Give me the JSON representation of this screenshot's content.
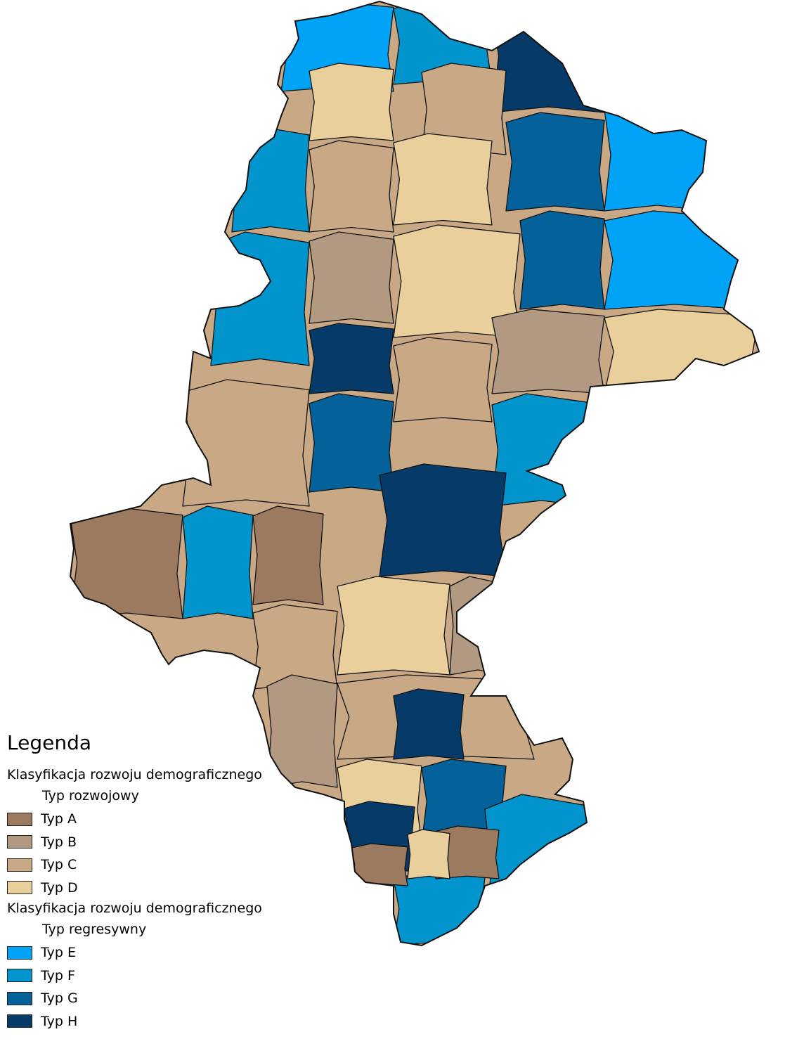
{
  "legend": {
    "title": "Legenda",
    "groups": [
      {
        "heading": "Klasyfikacja rozwoju demograficznego",
        "subheading": "Typ rozwojowy",
        "items": [
          {
            "label": "Typ A",
            "color": "#9b7a60"
          },
          {
            "label": "Typ B",
            "color": "#b29a82"
          },
          {
            "label": "Typ C",
            "color": "#c9a985"
          },
          {
            "label": "Typ D",
            "color": "#e8cf9c"
          }
        ]
      },
      {
        "heading": "Klasyfikacja rozwoju demograficznego",
        "subheading": "Typ regresywny",
        "items": [
          {
            "label": "Typ E",
            "color": "#00a3f5"
          },
          {
            "label": "Typ F",
            "color": "#0294cc"
          },
          {
            "label": "Typ G",
            "color": "#04619a"
          },
          {
            "label": "Typ H",
            "color": "#053a69"
          }
        ]
      }
    ]
  },
  "map": {
    "border_color": "#111111",
    "regions": [
      {
        "type": "Typ E"
      },
      {
        "type": "Typ F"
      },
      {
        "type": "Typ H"
      },
      {
        "type": "Typ D"
      },
      {
        "type": "Typ C"
      },
      {
        "type": "Typ E"
      },
      {
        "type": "Typ G"
      },
      {
        "type": "Typ D"
      },
      {
        "type": "Typ C"
      },
      {
        "type": "Typ F"
      },
      {
        "type": "Typ E"
      },
      {
        "type": "Typ B"
      },
      {
        "type": "Typ D"
      },
      {
        "type": "Typ G"
      },
      {
        "type": "Typ F"
      },
      {
        "type": "Typ A"
      },
      {
        "type": "Typ H"
      },
      {
        "type": "Typ C"
      },
      {
        "type": "Typ B"
      },
      {
        "type": "Typ D"
      },
      {
        "type": "Typ G"
      },
      {
        "type": "Typ F"
      },
      {
        "type": "Typ C"
      },
      {
        "type": "Typ H"
      },
      {
        "type": "Typ A"
      },
      {
        "type": "Typ F"
      },
      {
        "type": "Typ C"
      },
      {
        "type": "Typ D"
      },
      {
        "type": "Typ B"
      },
      {
        "type": "Typ G"
      }
    ]
  }
}
